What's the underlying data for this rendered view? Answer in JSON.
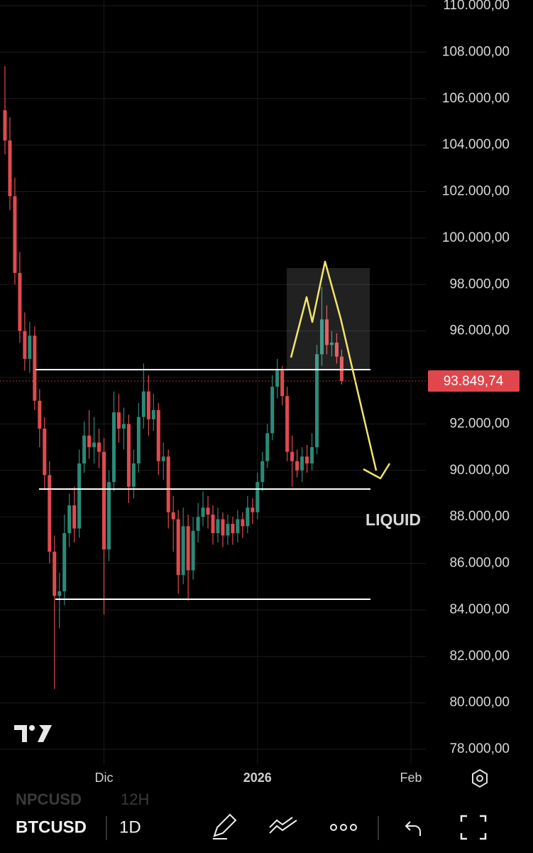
{
  "chart_data": {
    "type": "candlestick",
    "categories": [
      null,
      null,
      null,
      null,
      null,
      null,
      null,
      null,
      null,
      null,
      null,
      null,
      null,
      null,
      null,
      null,
      null,
      null,
      null,
      null,
      null,
      null,
      null,
      null,
      null,
      null,
      null,
      null,
      null,
      null,
      null,
      null,
      null,
      null,
      null,
      null,
      null,
      null,
      null,
      null,
      null,
      null,
      null,
      null,
      null,
      null,
      null,
      null,
      null,
      null,
      null,
      null,
      null,
      null,
      null,
      null,
      null,
      null,
      null,
      null,
      null,
      null,
      null,
      null,
      null,
      null,
      null,
      null,
      null
    ],
    "open": [
      105500,
      104200,
      101800,
      98500,
      96000,
      94800,
      95800,
      93000,
      91800,
      89800,
      86500,
      84600,
      84800,
      87300,
      88500,
      87500,
      90300,
      91500,
      91000,
      91200,
      90800,
      86600,
      89500,
      92500,
      91800,
      92000,
      89300,
      90300,
      92300,
      93400,
      92200,
      92600,
      90400,
      90600,
      88200,
      87900,
      85500,
      87600,
      85700,
      87400,
      88000,
      88400,
      88100,
      87300,
      87900,
      87200,
      87700,
      87300,
      87900,
      87600,
      88400,
      88200,
      89500,
      90400,
      91600,
      93600,
      94300,
      93200,
      90800,
      90400,
      90000,
      90600,
      90300,
      91000,
      95000,
      96500,
      95400,
      95500,
      94900
    ],
    "high": [
      107400,
      105200,
      102600,
      99400,
      96800,
      96400,
      96200,
      93500,
      92300,
      90400,
      87200,
      85600,
      88100,
      89000,
      89300,
      90900,
      92100,
      92600,
      92300,
      91800,
      91400,
      90000,
      93400,
      93300,
      92700,
      92400,
      90900,
      92900,
      94600,
      94100,
      93300,
      92900,
      91200,
      90900,
      88900,
      88300,
      88400,
      88100,
      88000,
      88600,
      89100,
      88900,
      88500,
      88400,
      88200,
      88100,
      88000,
      88300,
      88200,
      88900,
      88800,
      89900,
      90800,
      92000,
      94100,
      94800,
      94500,
      93600,
      91500,
      90900,
      91000,
      91100,
      91600,
      95400,
      97900,
      97100,
      96000,
      95900,
      95200
    ],
    "low": [
      103600,
      101200,
      98000,
      95500,
      94300,
      94200,
      92600,
      91000,
      89200,
      86000,
      80600,
      83200,
      84200,
      86700,
      86900,
      87100,
      89900,
      90500,
      90300,
      90100,
      83800,
      86100,
      89100,
      91200,
      90900,
      88600,
      88800,
      89900,
      91800,
      91500,
      91700,
      89800,
      89600,
      87500,
      86500,
      84700,
      85100,
      84400,
      85300,
      86900,
      87600,
      87500,
      86800,
      86900,
      86700,
      86800,
      86800,
      86900,
      87100,
      87300,
      87700,
      87900,
      89100,
      90100,
      91300,
      93100,
      92800,
      90400,
      89300,
      89700,
      89500,
      89900,
      90000,
      90700,
      94500,
      95000,
      94900,
      94600,
      93700
    ],
    "close": [
      104200,
      101800,
      98500,
      96000,
      94800,
      95800,
      93000,
      91800,
      89800,
      86500,
      84600,
      84800,
      87300,
      88500,
      87500,
      90300,
      91500,
      91000,
      91200,
      90800,
      86600,
      89500,
      92500,
      91800,
      92000,
      89300,
      90300,
      92300,
      93400,
      92200,
      92600,
      90400,
      90600,
      88200,
      87900,
      85500,
      87600,
      85700,
      87400,
      88000,
      88400,
      88100,
      87300,
      87900,
      87200,
      87700,
      87300,
      87900,
      87600,
      88400,
      88200,
      89500,
      90400,
      91600,
      93600,
      94300,
      93200,
      90800,
      90400,
      90000,
      90600,
      90300,
      91000,
      95000,
      96500,
      95400,
      95500,
      94900,
      93849.74
    ],
    "up_color": "#2a8a78",
    "down_color": "#e04a4f",
    "xlim": [
      -1,
      85
    ],
    "xticks": [
      {
        "value": 20,
        "label": "Dic"
      },
      {
        "value": 51,
        "label": "2026"
      },
      {
        "value": 82,
        "label": "Feb"
      }
    ],
    "ylim": [
      77360,
      110245
    ],
    "yticks": [
      {
        "value": 78000,
        "label": "78.000,00"
      },
      {
        "value": 80000,
        "label": "80.000,00"
      },
      {
        "value": 82000,
        "label": "82.000,00"
      },
      {
        "value": 84000,
        "label": "84.000,00"
      },
      {
        "value": 86000,
        "label": "86.000,00"
      },
      {
        "value": 88000,
        "label": "88.000,00"
      },
      {
        "value": 90000,
        "label": "90.000,00"
      },
      {
        "value": 92000,
        "label": "92.000,00"
      },
      {
        "value": 94000,
        "label": "94.000,00"
      },
      {
        "value": 96000,
        "label": "96.000,00"
      },
      {
        "value": 98000,
        "label": "98.000,00"
      },
      {
        "value": 100000,
        "label": "100.000,00"
      },
      {
        "value": 102000,
        "label": "102.000,00"
      },
      {
        "value": 104000,
        "label": "104.000,00"
      },
      {
        "value": 106000,
        "label": "106.000,00"
      },
      {
        "value": 108000,
        "label": "108.000,00"
      },
      {
        "value": 110000,
        "label": "110.000,00"
      }
    ],
    "grid": true,
    "last_price": {
      "value": 93849.74,
      "label": "93.849,74"
    },
    "last_price_color": "#e0474c",
    "annotation": "LIQUID"
  },
  "toolbar": {
    "symbol": "BTCUSD",
    "interval": "1D",
    "ghost_symbol": "NPCUSD",
    "ghost_interval": "12H"
  }
}
